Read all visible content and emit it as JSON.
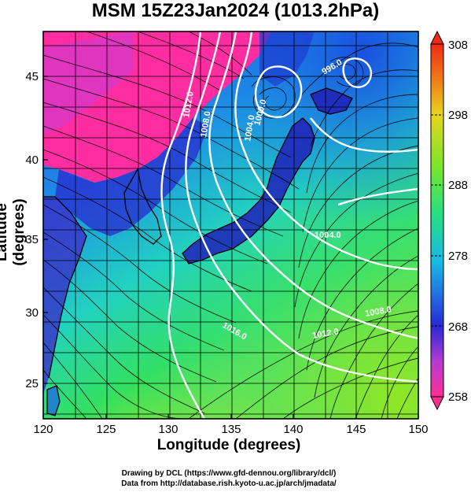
{
  "title": "MSM 15Z23Jan2024 (1013.2hPa)",
  "x_axis": {
    "label": "Longitude (degrees)",
    "range": [
      120,
      150
    ],
    "ticks": [
      "120",
      "125",
      "130",
      "135",
      "140",
      "145",
      "150"
    ]
  },
  "y_axis": {
    "label": "Latitude  (degrees)",
    "range": [
      22.5,
      48
    ],
    "ticks": [
      "25",
      "30",
      "35",
      "40",
      "45"
    ]
  },
  "colorbar": {
    "range": [
      258,
      308
    ],
    "ticks": [
      "258",
      "268",
      "278",
      "288",
      "298",
      "308"
    ],
    "colors": [
      "#ff2f92",
      "#c040d0",
      "#2a2ad8",
      "#20b0e8",
      "#27e070",
      "#a8e816",
      "#f2c81c",
      "#f03018"
    ]
  },
  "isobar_labels": [
    "1012.0",
    "1008.0",
    "1004.0",
    "1000.0",
    "1004.0",
    "996.0",
    "1008.0",
    "1012.0",
    "1016.0"
  ],
  "credits": {
    "line1": "Drawing by DCL (https://www.gfd-dennou.org/library/dcl/)",
    "line2": "Data from http://database.rish.kyoto-u.ac.jp/arch/jmadata/"
  }
}
